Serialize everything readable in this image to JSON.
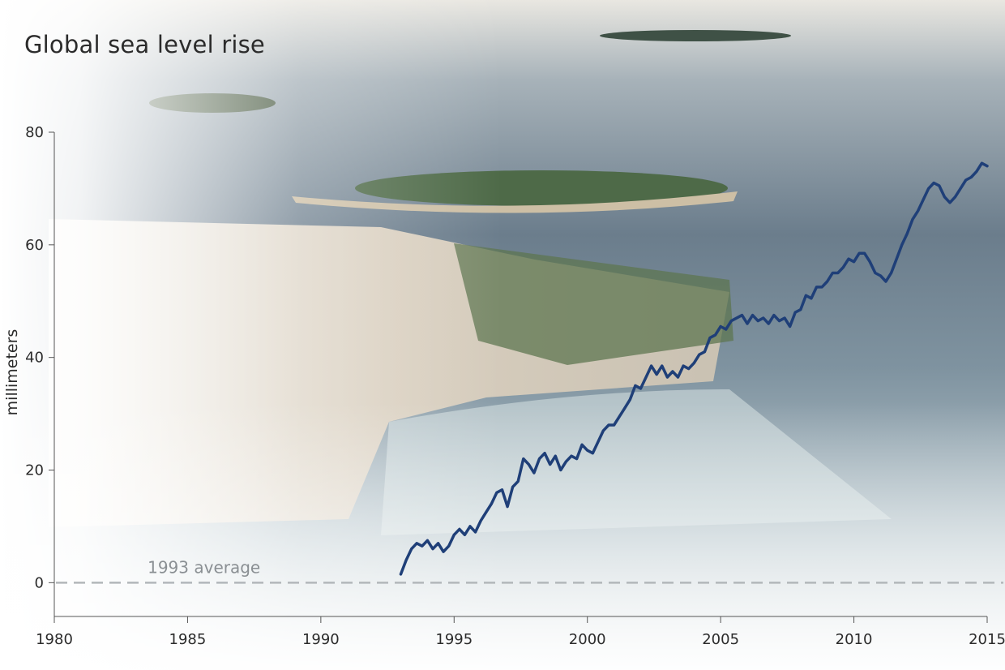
{
  "chart_data": {
    "type": "line",
    "title": "Global sea level rise",
    "xlabel": "",
    "ylabel": "millimeters",
    "xlim": [
      1980,
      2015
    ],
    "ylim": [
      -6,
      80
    ],
    "x_ticks": [
      1980,
      1985,
      1990,
      1995,
      2000,
      2005,
      2010,
      2015
    ],
    "y_ticks": [
      0,
      20,
      40,
      60,
      80
    ],
    "grid": false,
    "reference_line": {
      "y": 0,
      "label": "1993 average"
    },
    "series": [
      {
        "color": "#1f3f78",
        "x": [
          1993.0,
          1993.2,
          1993.4,
          1993.6,
          1993.8,
          1994.0,
          1994.2,
          1994.4,
          1994.6,
          1994.8,
          1995.0,
          1995.2,
          1995.4,
          1995.6,
          1995.8,
          1996.0,
          1996.2,
          1996.4,
          1996.6,
          1996.8,
          1997.0,
          1997.2,
          1997.4,
          1997.6,
          1997.8,
          1998.0,
          1998.2,
          1998.4,
          1998.6,
          1998.8,
          1999.0,
          1999.2,
          1999.4,
          1999.6,
          1999.8,
          2000.0,
          2000.2,
          2000.4,
          2000.6,
          2000.8,
          2001.0,
          2001.2,
          2001.4,
          2001.6,
          2001.8,
          2002.0,
          2002.2,
          2002.4,
          2002.6,
          2002.8,
          2003.0,
          2003.2,
          2003.4,
          2003.6,
          2003.8,
          2004.0,
          2004.2,
          2004.4,
          2004.6,
          2004.8,
          2005.0,
          2005.2,
          2005.4,
          2005.6,
          2005.8,
          2006.0,
          2006.2,
          2006.4,
          2006.6,
          2006.8,
          2007.0,
          2007.2,
          2007.4,
          2007.6,
          2007.8,
          2008.0,
          2008.2,
          2008.4,
          2008.6,
          2008.8,
          2009.0,
          2009.2,
          2009.4,
          2009.6,
          2009.8,
          2010.0,
          2010.2,
          2010.4,
          2010.6,
          2010.8,
          2011.0,
          2011.2,
          2011.4,
          2011.6,
          2011.8,
          2012.0,
          2012.2,
          2012.4,
          2012.6,
          2012.8,
          2013.0,
          2013.2,
          2013.4,
          2013.6,
          2013.8,
          2014.0,
          2014.2,
          2014.4,
          2014.6,
          2014.8,
          2015.0
        ],
        "y": [
          1.5,
          4,
          6,
          7,
          6.5,
          7.5,
          6,
          7,
          5.5,
          6.5,
          8.5,
          9.5,
          8.5,
          10,
          9,
          11,
          12.5,
          14,
          16,
          16.5,
          13.5,
          17,
          18,
          22,
          21,
          19.5,
          22,
          23,
          21,
          22.5,
          20,
          21.5,
          22.5,
          22,
          24.5,
          23.5,
          23,
          25,
          27,
          28,
          28,
          29.5,
          31,
          32.5,
          35,
          34.5,
          36.5,
          38.5,
          37,
          38.5,
          36.5,
          37.5,
          36.5,
          38.5,
          38,
          39,
          40.5,
          41,
          43.5,
          44,
          45.5,
          45,
          46.5,
          47,
          47.5,
          46,
          47.5,
          46.5,
          47,
          46,
          47.5,
          46.5,
          47,
          45.5,
          48,
          48.5,
          51,
          50.5,
          52.5,
          52.5,
          53.5,
          55,
          55,
          56,
          57.5,
          57,
          58.5,
          58.5,
          57,
          55,
          54.5,
          53.5,
          55,
          57.5,
          60,
          62,
          64.5,
          66,
          68,
          70,
          71,
          70.5,
          68.5,
          67.5,
          68.5,
          70,
          71.5,
          72,
          73,
          74.5,
          74
        ]
      }
    ]
  }
}
